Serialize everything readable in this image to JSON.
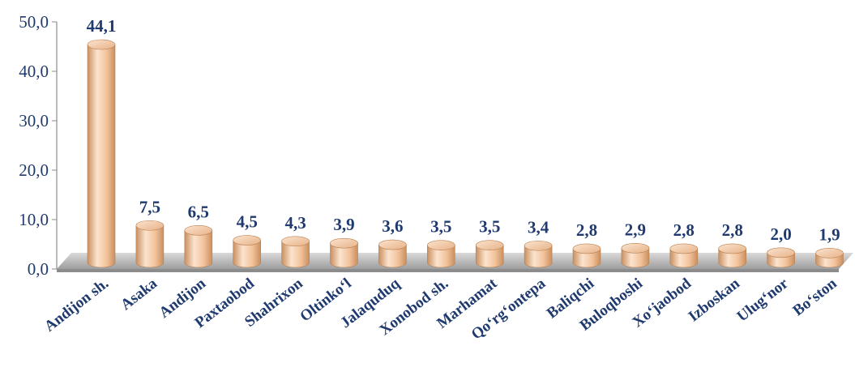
{
  "chart_data": {
    "type": "bar",
    "categories": [
      "Andijon sh.",
      "Asaka",
      "Andijon",
      "Paxtaobod",
      "Shahrixon",
      "Oltinko‘l",
      "Jalaquduq",
      "Xonobod sh.",
      "Marhamat",
      "Qo‘rg‘ontepa",
      "Baliqchi",
      "Buloqboshi",
      "Xo‘jaobod",
      "Izboskan",
      "Ulug‘nor",
      "Bo‘ston"
    ],
    "values": [
      44.1,
      7.5,
      6.5,
      4.5,
      4.3,
      3.9,
      3.6,
      3.5,
      3.5,
      3.4,
      2.8,
      2.9,
      2.8,
      2.8,
      2.0,
      1.9
    ],
    "value_labels": [
      "44,1",
      "7,5",
      "6,5",
      "4,5",
      "4,3",
      "3,9",
      "3,6",
      "3,5",
      "3,5",
      "3,4",
      "2,8",
      "2,9",
      "2,8",
      "2,8",
      "2,0",
      "1,9"
    ],
    "y_ticks": [
      "0,0",
      "10,0",
      "20,0",
      "30,0",
      "40,0",
      "50,0"
    ],
    "ylim": [
      0,
      50
    ],
    "title": "",
    "xlabel": "",
    "ylabel": "",
    "grid": false,
    "legend": "none",
    "colors": {
      "bar_light": "#fbe4cf",
      "bar_mid": "#f2c29a",
      "bar_dark": "#c98f60",
      "floor": "#bfbfbf",
      "text": "#1f3a6e"
    }
  }
}
